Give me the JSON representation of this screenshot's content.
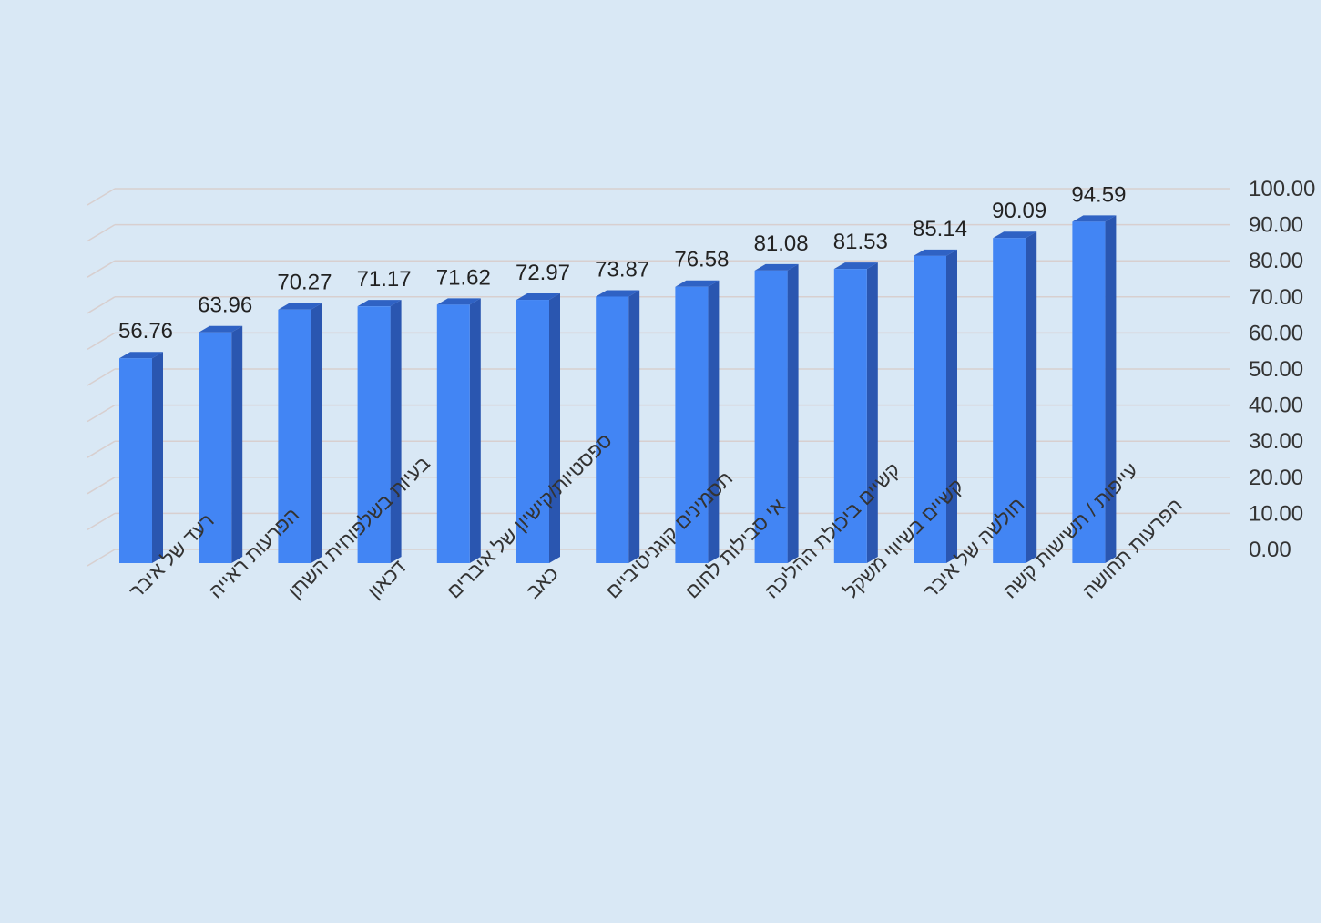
{
  "chart_data": {
    "type": "bar",
    "title": "",
    "xlabel": "",
    "ylabel": "",
    "ylim": [
      0,
      100
    ],
    "yticks": [
      "0.00",
      "10.00",
      "20.00",
      "30.00",
      "40.00",
      "50.00",
      "60.00",
      "70.00",
      "80.00",
      "90.00",
      "100.00"
    ],
    "categories": [
      "רעד של איבר",
      "הפרעות ראייה",
      "בעיות בשלפוחית השתן",
      "דכאון",
      "ספסטיות/קישיון של איברים",
      "כאב",
      "תסמינים קוגניטיביים",
      "אי סבילות לחום",
      "קשיים ביכולת ההליכה",
      "קשיים בשיווי משקל",
      "חולשה של איבר",
      "עייפות / תשישות קשה",
      "הפרעות תחושה"
    ],
    "values": [
      56.76,
      63.96,
      70.27,
      71.17,
      71.62,
      72.97,
      73.87,
      76.58,
      81.08,
      81.53,
      85.14,
      90.09,
      94.59
    ],
    "value_labels": [
      "56.76",
      "63.96",
      "70.27",
      "71.17",
      "71.62",
      "72.97",
      "73.87",
      "76.58",
      "81.08",
      "81.53",
      "85.14",
      "90.09",
      "94.59"
    ],
    "grid": true,
    "legend": "none",
    "colors": {
      "background": "#d9e8f5",
      "bar_front": "#4285f4",
      "bar_side": "#2a56b0",
      "bar_top": "#2f62c4",
      "gridline": "#d8cfcf"
    }
  }
}
